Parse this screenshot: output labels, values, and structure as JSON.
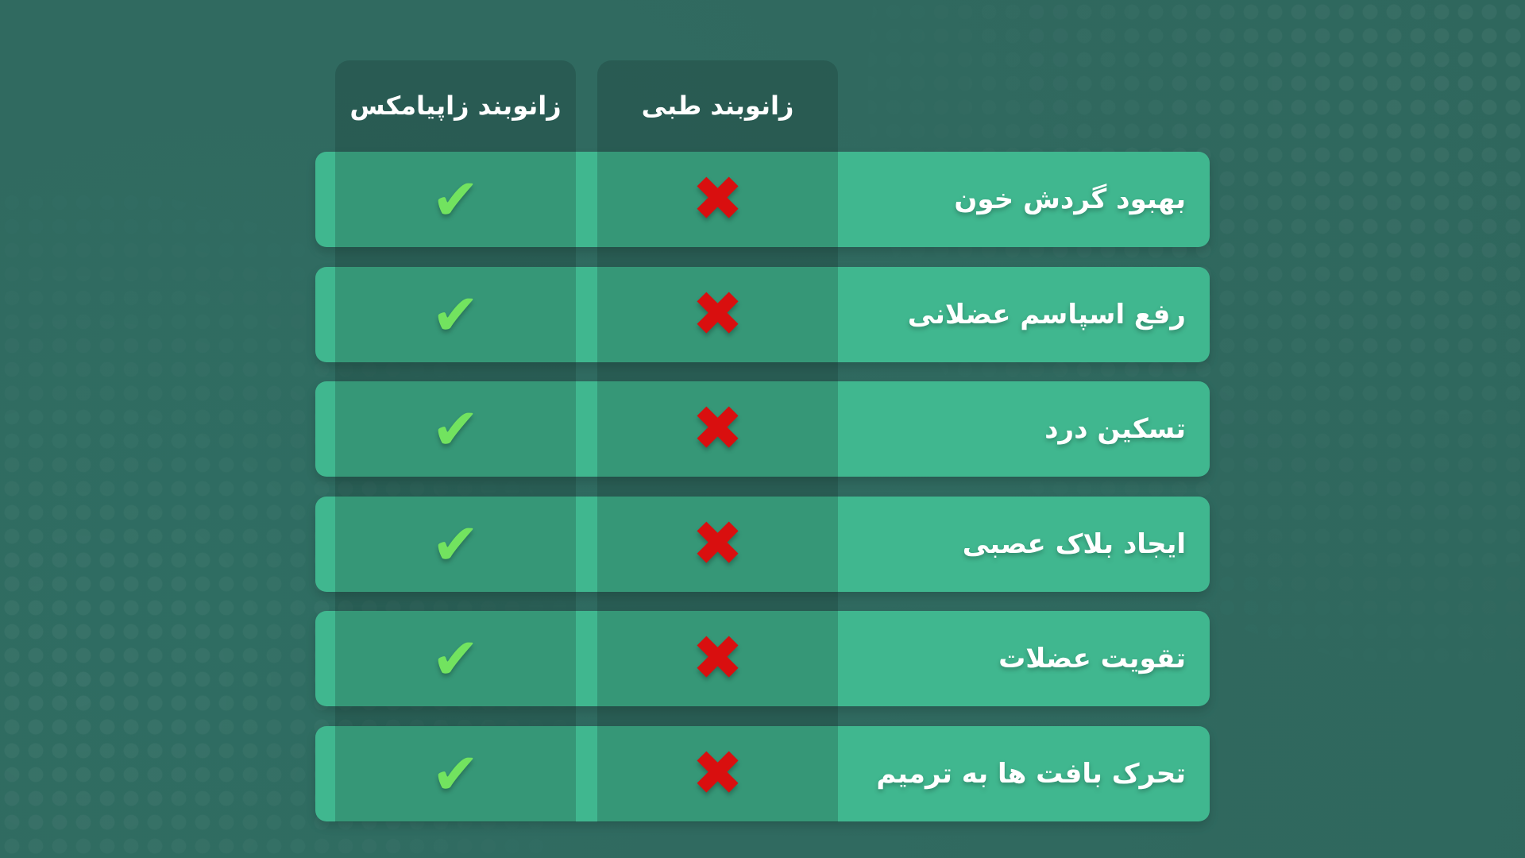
{
  "columns": {
    "zapiamax": "زانوبند زاپیامکس",
    "medical": "زانوبند طبی"
  },
  "rows": [
    {
      "label": "بهبود گردش خون",
      "zapiamax": "yes",
      "medical": "no"
    },
    {
      "label": "رفع اسپاسم عضلانی",
      "zapiamax": "yes",
      "medical": "no"
    },
    {
      "label": "تسکین درد",
      "zapiamax": "yes",
      "medical": "no"
    },
    {
      "label": "ایجاد بلاک عصبی",
      "zapiamax": "yes",
      "medical": "no"
    },
    {
      "label": "تقویت عضلات",
      "zapiamax": "yes",
      "medical": "no"
    },
    {
      "label": "تحرک بافت ها به ترمیم",
      "zapiamax": "yes",
      "medical": "no"
    }
  ],
  "icons": {
    "yes": "check-icon",
    "no": "cross-icon"
  },
  "colors": {
    "background": "#306a60",
    "row": "#40b78f",
    "check": "#72e35f",
    "cross": "#d90f0f"
  }
}
